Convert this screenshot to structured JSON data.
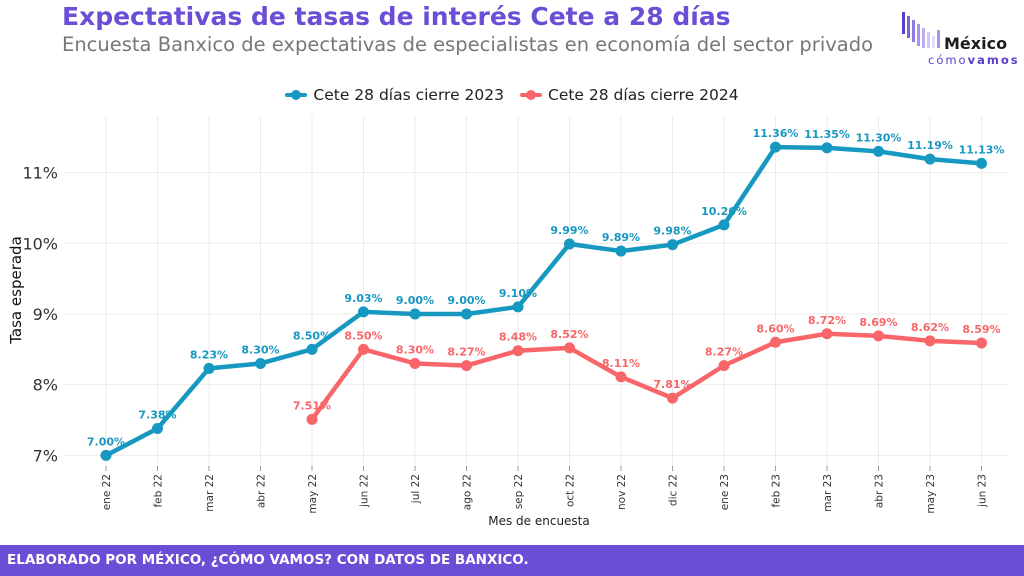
{
  "header": {
    "title": "Expectativas de tasas de interés Cete a 28 días",
    "subtitle": "Encuesta Banxico de expectativas de especialistas en economía del sector privado"
  },
  "logo": {
    "name": "México",
    "tag_light": "cómo",
    "tag_bold": "vamos"
  },
  "footer": {
    "text": "ELABORADO POR MÉXICO, ¿CÓMO VAMOS? CON DATOS DE BANXICO."
  },
  "chart_data": {
    "type": "line",
    "title": "Expectativas de tasas de interés Cete a 28 días",
    "subtitle": "Encuesta Banxico de expectativas de especialistas en economía del sector privado",
    "xlabel": "Mes de encuesta",
    "ylabel": "Tasa esperada",
    "categories": [
      "ene 22",
      "feb 22",
      "mar 22",
      "abr 22",
      "may 22",
      "jun 22",
      "jul 22",
      "ago 22",
      "sep 22",
      "oct 22",
      "nov 22",
      "dic 22",
      "ene 23",
      "feb 23",
      "mar 23",
      "abr 23",
      "may 23",
      "jun 23"
    ],
    "ylim": [
      6.85,
      11.8
    ],
    "yticks": [
      7,
      8,
      9,
      10,
      11
    ],
    "ytick_labels": [
      "7%",
      "8%",
      "9%",
      "10%",
      "11%"
    ],
    "grid": true,
    "legend_position": "top",
    "series": [
      {
        "name": "Cete 28 días cierre 2023",
        "color": "#1798c1",
        "values": [
          7.0,
          7.38,
          8.23,
          8.3,
          8.5,
          9.03,
          9.0,
          9.0,
          9.1,
          9.99,
          9.89,
          9.98,
          10.26,
          11.36,
          11.35,
          11.3,
          11.19,
          11.13
        ],
        "labels": [
          "7.00%",
          "7.38%",
          "8.23%",
          "8.30%",
          "8.50%",
          "9.03%",
          "9.00%",
          "9.00%",
          "9.10%",
          "9.99%",
          "9.89%",
          "9.98%",
          "10.26%",
          "11.36%",
          "11.35%",
          "11.30%",
          "11.19%",
          "11.13%"
        ]
      },
      {
        "name": "Cete 28 días cierre 2024",
        "color": "#f8666a",
        "values": [
          null,
          null,
          null,
          null,
          7.51,
          8.5,
          8.3,
          8.27,
          8.48,
          8.52,
          8.11,
          7.81,
          8.27,
          8.6,
          8.72,
          8.69,
          8.62,
          8.59
        ],
        "labels": [
          null,
          null,
          null,
          null,
          "7.51%",
          "8.50%",
          "8.30%",
          "8.27%",
          "8.48%",
          "8.52%",
          "8.11%",
          "7.81%",
          "8.27%",
          "8.60%",
          "8.72%",
          "8.69%",
          "8.62%",
          "8.59%"
        ]
      }
    ]
  }
}
